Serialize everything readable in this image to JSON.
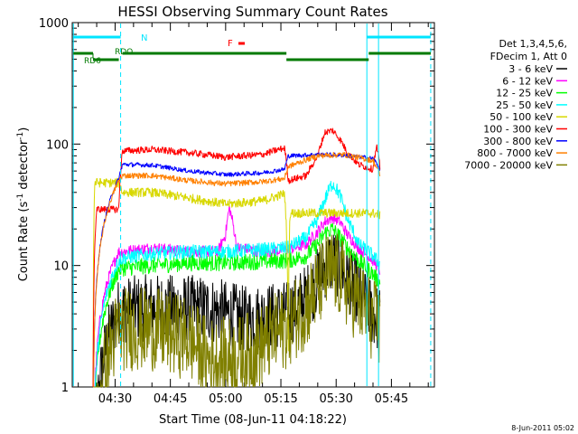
{
  "chart_data": {
    "type": "line",
    "title": "HESSI Observing Summary Count Rates",
    "xlabel": "Start Time (08-Jun-11 04:18:22)",
    "ylabel_main": "Count Rate (s",
    "ylabel_sup": "-1",
    "ylabel_mid": " detector",
    "ylabel_sup2": "-1",
    "ylabel_end": ")",
    "yscale": "log",
    "ylim": [
      1,
      1000
    ],
    "xlim": [
      "04:18:22",
      "05:56:40"
    ],
    "x_ticks": [
      "04:30",
      "04:45",
      "05:00",
      "05:15",
      "05:30",
      "05:45"
    ],
    "y_ticks": [
      "1",
      "10",
      "100",
      "1000"
    ],
    "legend": {
      "placement": "right",
      "header": [
        "Det 1,3,4,5,6,",
        "FDecim 1, Att 0"
      ]
    },
    "series": [
      {
        "name": "3 - 6 keV",
        "color": "#000000",
        "x": [
          "04:18",
          "04:24",
          "04:31",
          "04:32",
          "04:40",
          "04:55",
          "05:00",
          "05:05",
          "05:10",
          "05:17",
          "05:22",
          "05:25",
          "05:27",
          "05:29",
          "05:31",
          "05:33",
          "05:36",
          "05:40",
          "05:42"
        ],
        "values": [
          0,
          0,
          4.2,
          4.3,
          4.5,
          4.4,
          4.0,
          3.6,
          3.8,
          4.0,
          5.5,
          7.5,
          10,
          11,
          10,
          8,
          6,
          4,
          3.5
        ]
      },
      {
        "name": "6 - 12 keV",
        "color": "#ff00ff",
        "x": [
          "04:18",
          "04:24",
          "04:31",
          "04:32",
          "04:40",
          "04:50",
          "04:58",
          "05:00",
          "05:01",
          "05:03",
          "05:10",
          "05:17",
          "05:22",
          "05:25",
          "05:27",
          "05:29",
          "05:31",
          "05:33",
          "05:36",
          "05:40",
          "05:42"
        ],
        "values": [
          0,
          0,
          13,
          13,
          14,
          13,
          13,
          18,
          30,
          14,
          13,
          13.5,
          15,
          19,
          23,
          25,
          23,
          18,
          14,
          11,
          9
        ]
      },
      {
        "name": "12 - 25 keV",
        "color": "#00ff00",
        "x": [
          "04:18",
          "04:24",
          "04:31",
          "04:32",
          "04:40",
          "04:50",
          "05:00",
          "05:10",
          "05:17",
          "05:22",
          "05:25",
          "05:27",
          "05:29",
          "05:31",
          "05:33",
          "05:36",
          "05:40",
          "05:42"
        ],
        "values": [
          0,
          0,
          9.2,
          9.5,
          10,
          10.5,
          10.5,
          10.8,
          11,
          12,
          15,
          18.5,
          20,
          17,
          14,
          11,
          8.5,
          7
        ]
      },
      {
        "name": "25 - 50 keV",
        "color": "#00ffff",
        "x": [
          "04:18",
          "04:24",
          "04:31",
          "04:32",
          "04:40",
          "04:50",
          "05:00",
          "05:10",
          "05:17",
          "05:22",
          "05:25",
          "05:27",
          "05:29",
          "05:31",
          "05:33",
          "05:36",
          "05:40",
          "05:42"
        ],
        "values": [
          0,
          0,
          11,
          11.5,
          12.5,
          13,
          13,
          13.5,
          14,
          17,
          24,
          35,
          48,
          38,
          24,
          15,
          12,
          10
        ]
      },
      {
        "name": "50 - 100 keV",
        "color": "#d8d800",
        "x": [
          "04:18",
          "04:24",
          "04:24.5",
          "04:31",
          "04:32",
          "04:40",
          "04:50",
          "05:00",
          "05:10",
          "05:16",
          "05:17",
          "05:17.5",
          "05:25",
          "05:32",
          "05:40",
          "05:42"
        ],
        "values": [
          0,
          0,
          48,
          48,
          40,
          40,
          36,
          32,
          34,
          39,
          0,
          27,
          27,
          27,
          27,
          26
        ]
      },
      {
        "name": "100 - 300 keV",
        "color": "#ff0000",
        "x": [
          "04:18",
          "04:24",
          "04:25",
          "04:31",
          "04:32",
          "04:40",
          "04:50",
          "05:00",
          "05:10",
          "05:16",
          "05:17",
          "05:22",
          "05:25",
          "05:27",
          "05:29",
          "05:31",
          "05:33",
          "05:36",
          "05:40",
          "05:41",
          "05:42"
        ],
        "values": [
          0,
          0,
          29,
          29,
          88,
          90,
          85,
          78,
          82,
          93,
          50,
          55,
          80,
          125,
          130,
          110,
          85,
          68,
          62,
          95,
          60
        ]
      },
      {
        "name": "300 - 800 keV",
        "color": "#0000ff",
        "x": [
          "04:18",
          "04:24",
          "04:31",
          "04:32",
          "04:40",
          "04:50",
          "05:00",
          "05:10",
          "05:16",
          "05:17",
          "05:25",
          "05:32",
          "05:40",
          "05:42"
        ],
        "values": [
          0,
          0,
          52,
          68,
          67,
          60,
          56,
          58,
          62,
          80,
          82,
          81,
          76,
          62
        ]
      },
      {
        "name": "800 - 7000 keV",
        "color": "#ff8000",
        "x": [
          "04:18",
          "04:24",
          "04:31",
          "04:32",
          "04:40",
          "04:50",
          "05:00",
          "05:10",
          "05:16",
          "05:17",
          "05:25",
          "05:32",
          "05:40",
          "05:42"
        ],
        "values": [
          0,
          0,
          50,
          55,
          55,
          50,
          47,
          49,
          52,
          65,
          80,
          82,
          73,
          55
        ]
      },
      {
        "name": "7000 - 20000 keV",
        "color": "#808000",
        "x": [
          "04:18",
          "04:24",
          "04:31",
          "04:32",
          "04:40",
          "04:50",
          "04:55",
          "05:00",
          "05:05",
          "05:10",
          "05:17",
          "05:22",
          "05:25",
          "05:27",
          "05:29",
          "05:31",
          "05:33",
          "05:36",
          "05:40",
          "05:42"
        ],
        "values": [
          0,
          0,
          3.0,
          3.0,
          3.0,
          2.5,
          1.7,
          1.7,
          1.8,
          2.2,
          3.2,
          4.6,
          6.5,
          8.2,
          9,
          8,
          6.5,
          5,
          3.5,
          3
        ]
      }
    ],
    "annotations": {
      "night_label": "N",
      "rdo_label": "RDO",
      "rd6_label": "RD6",
      "flare_label": "F"
    },
    "footer_date": "8-Jun-2011 05:02"
  }
}
